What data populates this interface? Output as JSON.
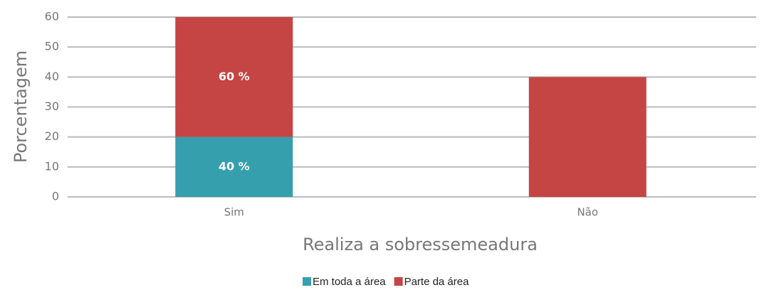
{
  "chart_data": {
    "type": "stacked_bar",
    "categories": [
      "Sim",
      "Não"
    ],
    "series": [
      {
        "name": "Em toda a área",
        "color": "#359fae",
        "values": [
          20,
          0
        ]
      },
      {
        "name": "Parte da área",
        "color": "#c44543",
        "values": [
          40,
          40
        ]
      }
    ],
    "annotations": [
      "40 %",
      "60 %"
    ],
    "xlabel": "Realiza a sobressemeadura",
    "ylabel": "Porcentagem",
    "ylim": [
      0,
      60
    ],
    "yticks": [
      0,
      10,
      20,
      30,
      40,
      50,
      60
    ],
    "grid": true,
    "legend": "bottom"
  }
}
